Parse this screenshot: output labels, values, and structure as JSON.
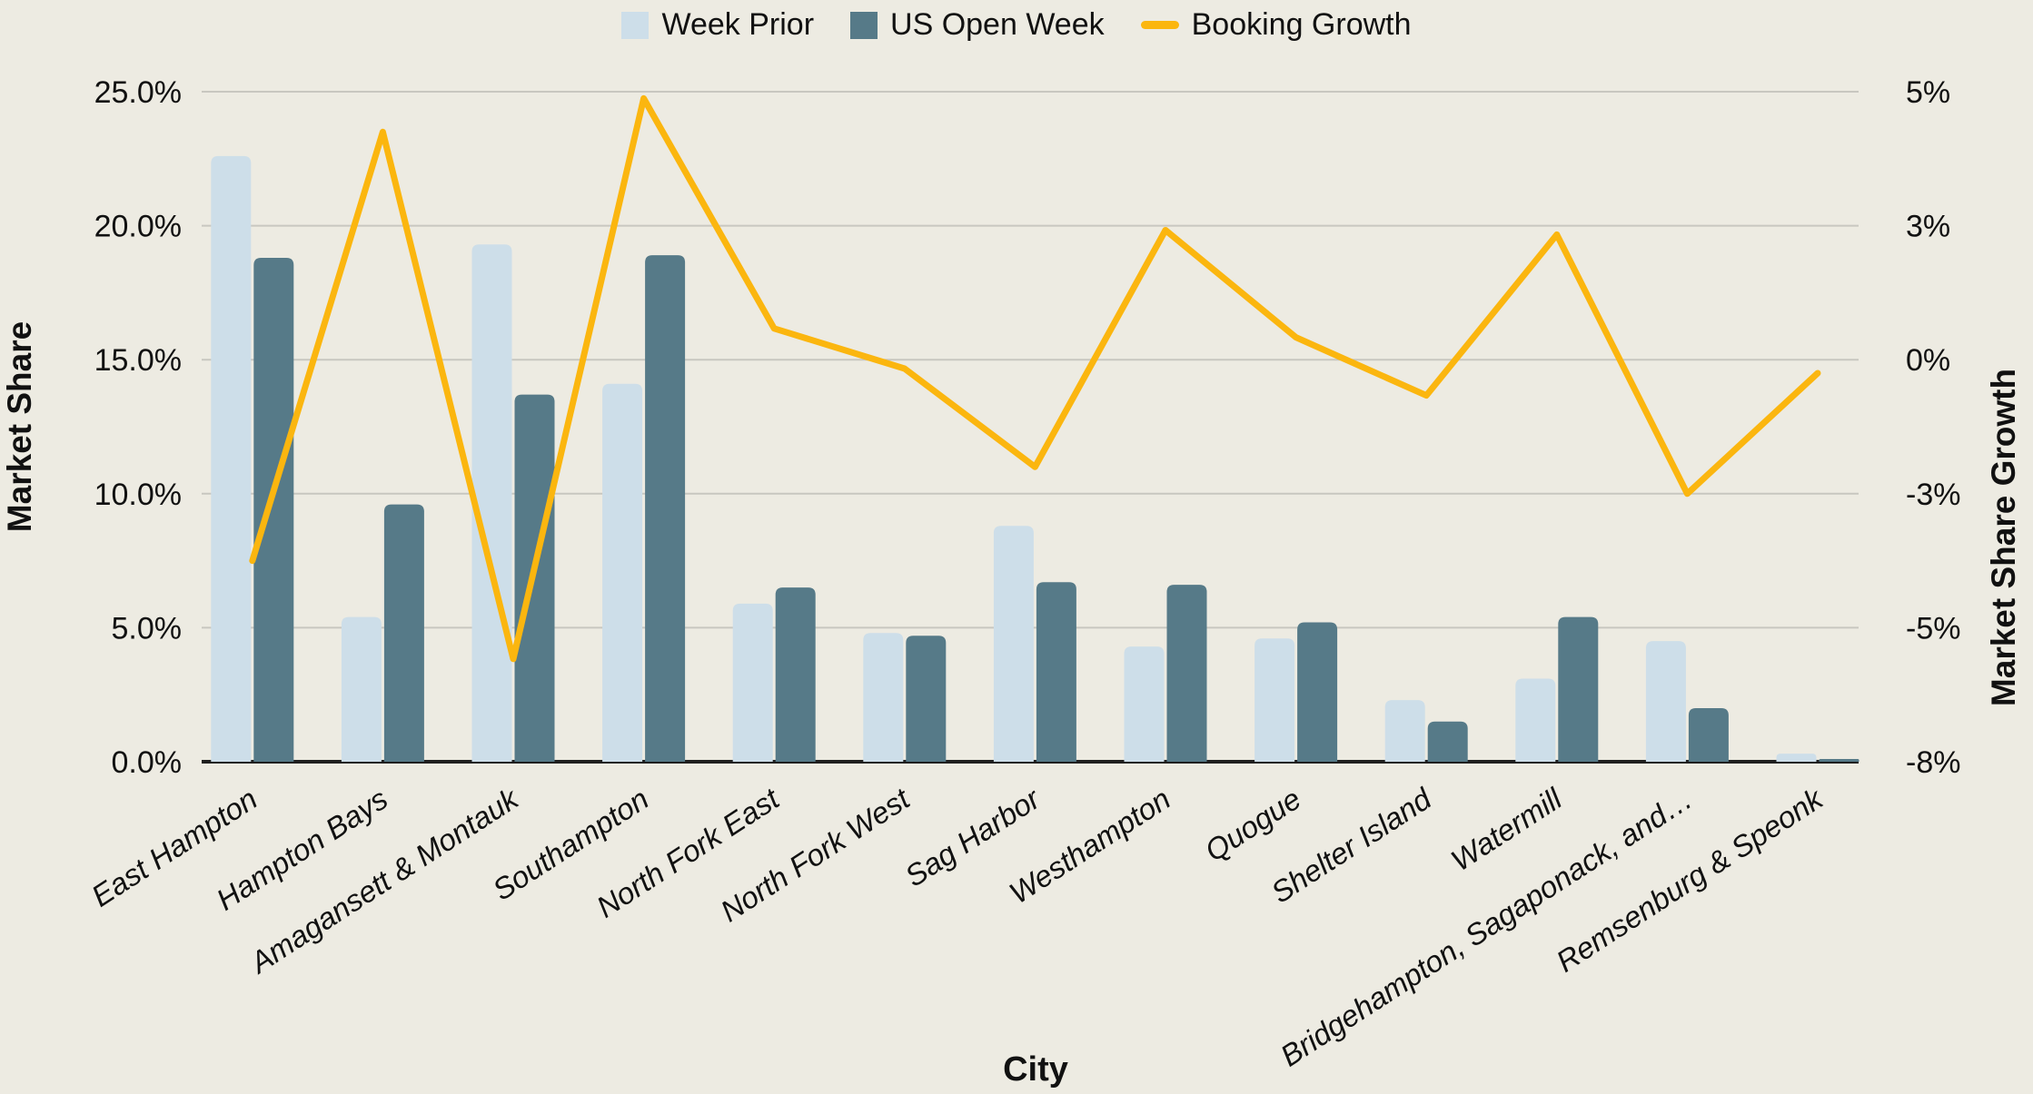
{
  "page": {
    "background": "#edebe2"
  },
  "legend": {
    "items": [
      {
        "label": "Week Prior",
        "marker": "square",
        "color": "#cddee9"
      },
      {
        "label": "US Open Week",
        "marker": "square",
        "color": "#567a88"
      },
      {
        "label": "Booking Growth",
        "marker": "line",
        "color": "#fbb60f"
      }
    ]
  },
  "axes": {
    "left": {
      "title": "Market Share",
      "tick_labels": [
        "0.0%",
        "5.0%",
        "10.0%",
        "15.0%",
        "20.0%",
        "25.0%"
      ],
      "tick_values": [
        0,
        5,
        10,
        15,
        20,
        25
      ]
    },
    "right": {
      "title": "Market Share Growth",
      "tick_labels": [
        "5%",
        "3%",
        "0%",
        "-3%",
        "-5%",
        "-8%"
      ],
      "tick_values": [
        5,
        3,
        0,
        -3,
        -5,
        -8
      ]
    },
    "x": {
      "title": "City"
    }
  },
  "chart_data": {
    "type": "bar",
    "subtype": "grouped-bars-with-line-on-secondary-axis",
    "categories": [
      "East Hampton",
      "Hampton Bays",
      "Amagansett & Montauk",
      "Southampton",
      "North Fork East",
      "North Fork West",
      "Sag Harbor",
      "Westhampton",
      "Quogue",
      "Shelter Island",
      "Watermill",
      "Bridgehampton, Sagaponack, and…",
      "Remsenburg & Speonk"
    ],
    "series": [
      {
        "name": "Week Prior",
        "type": "bar",
        "axis": "left",
        "color": "#cddee9",
        "values": [
          22.6,
          5.4,
          19.3,
          14.1,
          5.9,
          4.8,
          8.8,
          4.3,
          4.6,
          2.3,
          3.1,
          4.5,
          0.3
        ]
      },
      {
        "name": "US Open Week",
        "type": "bar",
        "axis": "left",
        "color": "#567a88",
        "values": [
          18.8,
          9.6,
          13.7,
          18.9,
          6.5,
          4.7,
          6.7,
          6.6,
          5.2,
          1.5,
          5.4,
          2.0,
          0.1
        ]
      },
      {
        "name": "Booking Growth",
        "type": "line",
        "axis": "right",
        "color": "#fbb60f",
        "values": [
          -4.0,
          4.4,
          -5.7,
          4.9,
          0.7,
          -0.2,
          -2.4,
          2.9,
          0.5,
          -0.8,
          2.8,
          -3.0,
          -0.3
        ]
      }
    ],
    "xlabel": "City",
    "ylabel_left": "Market Share",
    "ylabel_right": "Market Share Growth",
    "left_axis_range": [
      0,
      25
    ],
    "right_axis_tick_values": [
      5,
      3,
      0,
      -3,
      -5,
      -8
    ],
    "grid": true,
    "legend_position": "top",
    "background": "#edebe2",
    "gridline_color": "#c8c7c0",
    "baseline_color": "#1f1f1f"
  }
}
